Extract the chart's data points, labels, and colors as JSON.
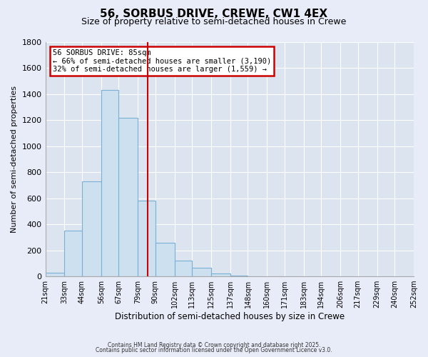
{
  "title": "56, SORBUS DRIVE, CREWE, CW1 4EX",
  "subtitle": "Size of property relative to semi-detached houses in Crewe",
  "xlabel": "Distribution of semi-detached houses by size in Crewe",
  "ylabel": "Number of semi-detached properties",
  "bar_color": "#cce0f0",
  "bar_edge_color": "#7ab0d4",
  "vline_x": 85,
  "vline_color": "#cc0000",
  "annotation_title": "56 SORBUS DRIVE: 85sqm",
  "annotation_line1": "← 66% of semi-detached houses are smaller (3,190)",
  "annotation_line2": "32% of semi-detached houses are larger (1,559) →",
  "annotation_box_color": "#cc0000",
  "bins": [
    21,
    33,
    44,
    56,
    67,
    79,
    90,
    102,
    113,
    125,
    137,
    148,
    160,
    171,
    183,
    194,
    206,
    217,
    229,
    240,
    252
  ],
  "counts": [
    30,
    350,
    730,
    1430,
    1220,
    580,
    260,
    120,
    65,
    25,
    5,
    2,
    0,
    0,
    0,
    0,
    0,
    0,
    0,
    0
  ],
  "ylim": [
    0,
    1800
  ],
  "yticks": [
    0,
    200,
    400,
    600,
    800,
    1000,
    1200,
    1400,
    1600,
    1800
  ],
  "footer1": "Contains HM Land Registry data © Crown copyright and database right 2025.",
  "footer2": "Contains public sector information licensed under the Open Government Licence v3.0.",
  "background_color": "#e8ecf8",
  "plot_bg_color": "#dce4f0",
  "grid_color": "#ffffff",
  "title_fontsize": 11,
  "subtitle_fontsize": 9,
  "tick_labels": [
    "21sqm",
    "33sqm",
    "44sqm",
    "56sqm",
    "67sqm",
    "79sqm",
    "90sqm",
    "102sqm",
    "113sqm",
    "125sqm",
    "137sqm",
    "148sqm",
    "160sqm",
    "171sqm",
    "183sqm",
    "194sqm",
    "206sqm",
    "217sqm",
    "229sqm",
    "240sqm",
    "252sqm"
  ]
}
